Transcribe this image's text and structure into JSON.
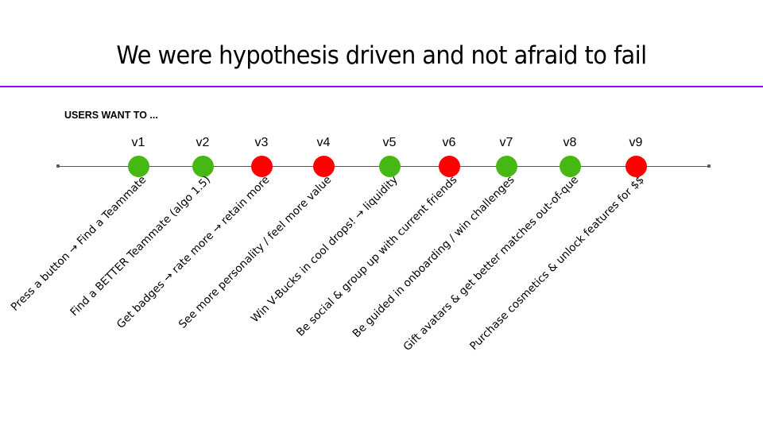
{
  "title": "We were hypothesis driven and not afraid to fail",
  "subheading": "USERS WANT TO ...",
  "colors": {
    "rule": "#9900ff",
    "axis": "#595959",
    "success": "#45b813",
    "fail": "#ff0000"
  },
  "timeline": {
    "versions": [
      {
        "label": "v1",
        "status": "success",
        "hypothesis": "Press a button → Find a Teammate"
      },
      {
        "label": "v2",
        "status": "success",
        "hypothesis": "Find a BETTER Teammate (algo 1.5)"
      },
      {
        "label": "v3",
        "status": "fail",
        "hypothesis": "Get badges → rate more → retain more"
      },
      {
        "label": "v4",
        "status": "fail",
        "hypothesis": "See more personality / feel more value"
      },
      {
        "label": "v5",
        "status": "success",
        "hypothesis": "Win V-Bucks in cool drops! → liquidity"
      },
      {
        "label": "v6",
        "status": "fail",
        "hypothesis": "Be social & group up with current friends"
      },
      {
        "label": "v7",
        "status": "success",
        "hypothesis": "Be guided in onboarding / win challenges"
      },
      {
        "label": "v8",
        "status": "success",
        "hypothesis": "Gift avatars & get better matches out-of-que"
      },
      {
        "label": "v9",
        "status": "fail",
        "hypothesis": "Purchase cosmetics & unlock features for $$"
      }
    ]
  }
}
